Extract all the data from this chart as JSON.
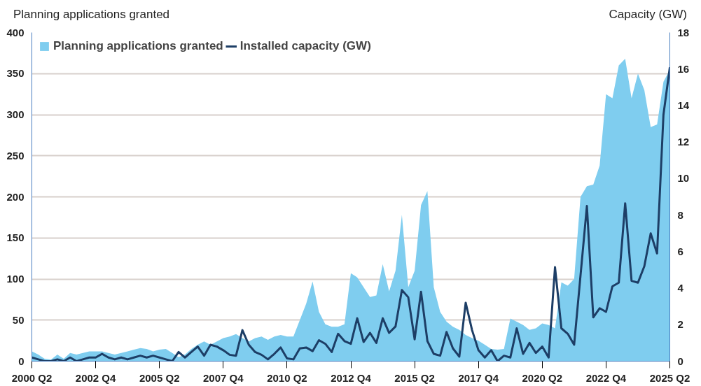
{
  "chart_data": {
    "type": "area",
    "ylabel": "Planning applications granted",
    "y2label": "Capacity (GW)",
    "categories": [
      "2000 Q2",
      null,
      null,
      null,
      null,
      null,
      null,
      null,
      null,
      null,
      "2002 Q4",
      null,
      null,
      null,
      null,
      null,
      null,
      null,
      null,
      null,
      "2005 Q2",
      null,
      null,
      null,
      null,
      null,
      null,
      null,
      null,
      null,
      "2007 Q4",
      null,
      null,
      null,
      null,
      null,
      null,
      null,
      null,
      null,
      "2010 Q2",
      null,
      null,
      null,
      null,
      null,
      null,
      null,
      null,
      null,
      "2012 Q4",
      null,
      null,
      null,
      null,
      null,
      null,
      null,
      null,
      null,
      "2015 Q2",
      null,
      null,
      null,
      null,
      null,
      null,
      null,
      null,
      null,
      "2017 Q4",
      null,
      null,
      null,
      null,
      null,
      null,
      null,
      null,
      null,
      "2020 Q2",
      null,
      null,
      null,
      null,
      null,
      null,
      null,
      null,
      null,
      "2022 Q4",
      null,
      null,
      null,
      null,
      null,
      null,
      null,
      null,
      null,
      "2025 Q2"
    ],
    "series": [
      {
        "name": "Planning applications granted",
        "color": "#7fcdef",
        "values": [
          12,
          8,
          3,
          2,
          8,
          3,
          10,
          8,
          10,
          12,
          12,
          12,
          10,
          8,
          10,
          12,
          14,
          16,
          15,
          12,
          14,
          15,
          10,
          5,
          8,
          15,
          20,
          24,
          20,
          24,
          28,
          30,
          33,
          28,
          24,
          28,
          30,
          26,
          30,
          32,
          30,
          30,
          50,
          70,
          97,
          60,
          45,
          42,
          42,
          45,
          107,
          102,
          90,
          78,
          80,
          118,
          85,
          110,
          178,
          90,
          110,
          190,
          207,
          90,
          60,
          48,
          42,
          38,
          32,
          28,
          25,
          20,
          15,
          14,
          15,
          52,
          48,
          44,
          38,
          40,
          46,
          44,
          40,
          96,
          92,
          100,
          200,
          213,
          215,
          238,
          325,
          320,
          360,
          368,
          320,
          350,
          330,
          285,
          288,
          340,
          355
        ]
      },
      {
        "name": "Installed capacity (GW)",
        "type": "line",
        "axis": "y2",
        "color": "#1d3e66",
        "values": [
          0.2,
          0.1,
          0,
          0,
          0.1,
          0,
          0.2,
          0,
          0.1,
          0.2,
          0.2,
          0.4,
          0.2,
          0.1,
          0.2,
          0.1,
          0.2,
          0.3,
          0.2,
          0.3,
          0.2,
          0.1,
          0,
          0.5,
          0.2,
          0.5,
          0.8,
          0.3,
          0.9,
          0.8,
          0.6,
          0.35,
          0.3,
          1.7,
          0.9,
          0.5,
          0.35,
          0.1,
          0.4,
          0.75,
          0.15,
          0.1,
          0.7,
          0.75,
          0.55,
          1.15,
          0.95,
          0.5,
          1.5,
          1.1,
          0.95,
          2.35,
          1.05,
          1.55,
          1.0,
          2.35,
          1.55,
          1.9,
          3.9,
          3.5,
          1.2,
          3.8,
          1.1,
          0.4,
          0.3,
          1.6,
          0.7,
          0.25,
          3.2,
          1.7,
          0.6,
          0.2,
          0.6,
          0,
          0.3,
          0.2,
          1.8,
          0.4,
          1.0,
          0.45,
          0.8,
          0.2,
          5.15,
          1.8,
          1.5,
          0.9,
          4.7,
          8.5,
          2.4,
          2.9,
          2.7,
          4.1,
          4.3,
          8.65,
          4.4,
          4.3,
          5.2,
          7.0,
          5.9,
          13.5,
          16.1
        ]
      }
    ],
    "ylim": [
      0,
      400
    ],
    "yticks": [
      0,
      50,
      100,
      150,
      200,
      250,
      300,
      350,
      400
    ],
    "y2lim": [
      0,
      18
    ],
    "y2ticks": [
      0,
      2,
      4,
      6,
      8,
      10,
      12,
      14,
      16,
      18
    ],
    "grid": "y",
    "legend": "top left"
  }
}
